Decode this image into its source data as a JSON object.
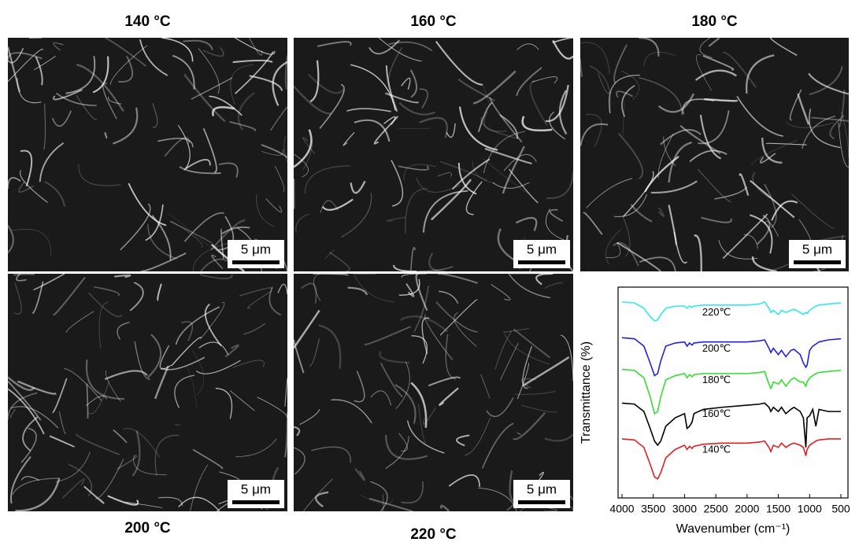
{
  "panels": [
    {
      "title": "140 °C",
      "scale_bar": "5 μm"
    },
    {
      "title": "160 °C",
      "scale_bar": "5 μm"
    },
    {
      "title": "180 °C",
      "scale_bar": "5 μm"
    },
    {
      "title": "200 °C",
      "scale_bar": "5 μm"
    },
    {
      "title": "220 °C",
      "scale_bar": "5 μm"
    }
  ],
  "chart_data": {
    "type": "line",
    "xlabel": "Wavenumber (cm⁻¹)",
    "ylabel": "Transmittance (%)",
    "x": [
      4000,
      3800,
      3650,
      3550,
      3480,
      3430,
      3380,
      3300,
      3150,
      3000,
      2960,
      2920,
      2880,
      2850,
      2700,
      2400,
      2000,
      1800,
      1720,
      1650,
      1620,
      1580,
      1500,
      1450,
      1380,
      1300,
      1250,
      1150,
      1100,
      1060,
      1040,
      1000,
      950,
      900,
      850,
      700,
      500
    ],
    "xlim": [
      4000,
      500
    ],
    "xticks": [
      4000,
      3500,
      3000,
      2500,
      2000,
      1500,
      1000,
      500
    ],
    "ylim": [
      0,
      100
    ],
    "series": [
      {
        "name": "220℃",
        "color": "#33e6f0",
        "values": [
          93,
          92.5,
          90,
          86,
          84,
          84.5,
          87,
          90,
          91,
          91,
          90,
          91,
          90.5,
          91,
          91.5,
          91.5,
          91.5,
          92,
          93,
          90,
          88,
          89,
          87,
          89,
          88,
          89,
          89.5,
          88,
          87,
          88,
          87.5,
          89,
          90,
          91,
          91.5,
          92,
          92.5
        ]
      },
      {
        "name": "200℃",
        "color": "#2222dd",
        "values": [
          76,
          75.5,
          72,
          64,
          58,
          59,
          65,
          72,
          73.5,
          74,
          72,
          73.5,
          72.5,
          73.5,
          74,
          74,
          74,
          74.5,
          75,
          71,
          69,
          71,
          68,
          70,
          67,
          70,
          70.5,
          68,
          64,
          62,
          63,
          70,
          72,
          73,
          74,
          75,
          75.5
        ]
      },
      {
        "name": "180℃",
        "color": "#33dd33",
        "values": [
          61,
          60.5,
          57,
          48,
          40,
          41,
          48,
          56,
          58,
          59,
          57,
          58.5,
          57.5,
          58.5,
          59,
          59,
          59,
          59.5,
          60,
          54,
          52,
          55,
          54,
          56,
          53,
          56,
          57,
          55,
          55,
          53,
          55,
          57,
          58,
          59,
          59.5,
          60,
          60.5
        ]
      },
      {
        "name": "160℃",
        "color": "#000000",
        "values": [
          45,
          44.5,
          41,
          33,
          27,
          25,
          27,
          34,
          38,
          40,
          33,
          34,
          36,
          40,
          42,
          43,
          44,
          44.5,
          45,
          43,
          41,
          43,
          41,
          43,
          40,
          42,
          43,
          41,
          38,
          24,
          38,
          39,
          42,
          34,
          42,
          41,
          41
        ]
      },
      {
        "name": "140℃",
        "color": "#e02020",
        "values": [
          28,
          27.5,
          24,
          16,
          10,
          9,
          12,
          19,
          23,
          25,
          23,
          24.5,
          23.5,
          24.5,
          25.5,
          26,
          26,
          26.5,
          27,
          24,
          22,
          25,
          24,
          26,
          24,
          25.5,
          26,
          25,
          24,
          20,
          23,
          25,
          26,
          27,
          27.5,
          28,
          28
        ]
      }
    ]
  }
}
